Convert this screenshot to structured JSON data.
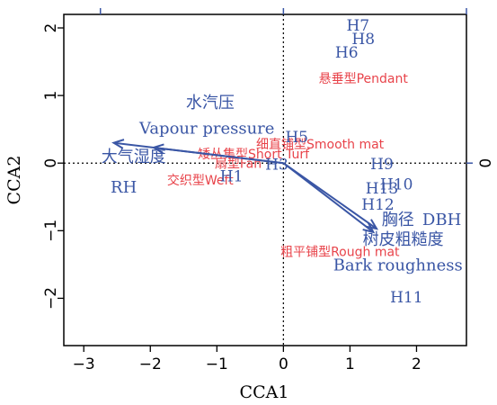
{
  "chart_data": {
    "type": "scatter",
    "xlabel": "CCA1",
    "ylabel": "CCA2",
    "xlim": [
      -3.3,
      2.75
    ],
    "ylim": [
      -2.7,
      2.2
    ],
    "x_ticks": [
      "−3",
      "−2",
      "−1",
      "0",
      "1",
      "2"
    ],
    "x_tick_values": [
      -3,
      -2,
      -1,
      0,
      1,
      2
    ],
    "y_ticks": [
      "−2",
      "−1",
      "0",
      "1",
      "2"
    ],
    "y_tick_values": [
      -2,
      -1,
      0,
      1,
      2
    ],
    "top_axis_ticks": [
      -2.75,
      0,
      2.75
    ],
    "right_axis_ticks": [
      {
        "value": 0,
        "label": "0"
      }
    ],
    "reference_lines": {
      "x": 0,
      "y": 0,
      "style": "dotted"
    },
    "colors": {
      "sites": "#3a56a5",
      "species": "#e8434a",
      "arrows": "#3a56a5"
    },
    "sites": [
      {
        "label": "H7",
        "x": 1.12,
        "y": 2.02
      },
      {
        "label": "H8",
        "x": 1.2,
        "y": 1.82
      },
      {
        "label": "H6",
        "x": 0.95,
        "y": 1.62
      },
      {
        "label": "H5",
        "x": 0.2,
        "y": 0.37
      },
      {
        "label": "H3",
        "x": -0.1,
        "y": -0.04
      },
      {
        "label": "H1",
        "x": -0.78,
        "y": -0.21
      },
      {
        "label": "H9",
        "x": 1.48,
        "y": -0.03
      },
      {
        "label": "H10",
        "x": 1.7,
        "y": -0.33
      },
      {
        "label": "H13",
        "x": 1.48,
        "y": -0.39
      },
      {
        "label": "H12",
        "x": 1.42,
        "y": -0.63
      },
      {
        "label": "H11",
        "x": 1.85,
        "y": -2.0
      }
    ],
    "species": [
      {
        "label": "悬垂型Pendant",
        "x": 1.2,
        "y": 1.24
      },
      {
        "label": "细直铺型Smooth mat",
        "x": 0.55,
        "y": 0.27
      },
      {
        "label": "矮丛集型Short Turf",
        "x": -0.45,
        "y": 0.12
      },
      {
        "label": "扇型Fan",
        "x": -0.68,
        "y": -0.02
      },
      {
        "label": "交织型Weft",
        "x": -1.25,
        "y": -0.26
      },
      {
        "label": "粗平铺型Rough mat",
        "x": 0.85,
        "y": -1.32
      }
    ],
    "environment": [
      {
        "name_cn": "大气湿度",
        "name_en": "RH",
        "x": -2.55,
        "y": 0.3
      },
      {
        "name_cn": "水汽压",
        "name_en": "Vapour pressure",
        "x": -1.95,
        "y": 0.23
      },
      {
        "name_cn": "胸径",
        "name_en": "DBH",
        "x": 1.4,
        "y": -0.97
      },
      {
        "name_cn": "树皮粗糙度",
        "name_en": "Bark roughness",
        "x": 1.35,
        "y": -1.02
      }
    ],
    "env_label_positions": [
      {
        "text_key": "name_cn",
        "index": 0,
        "x": -2.25,
        "y": 0.08
      },
      {
        "text_key": "name_en",
        "index": 0,
        "x": -2.4,
        "y": -0.37
      },
      {
        "text_key": "name_cn",
        "index": 1,
        "x": -1.1,
        "y": 0.88
      },
      {
        "text_key": "name_en",
        "index": 1,
        "x": -1.15,
        "y": 0.5
      },
      {
        "text_key": "name_cn",
        "index": 2,
        "x": 1.72,
        "y": -0.85
      },
      {
        "text_key": "name_en",
        "index": 2,
        "x": 2.38,
        "y": -0.85
      },
      {
        "text_key": "name_cn",
        "index": 3,
        "x": 1.8,
        "y": -1.14
      },
      {
        "text_key": "name_en",
        "index": 3,
        "x": 1.72,
        "y": -1.52
      }
    ]
  }
}
